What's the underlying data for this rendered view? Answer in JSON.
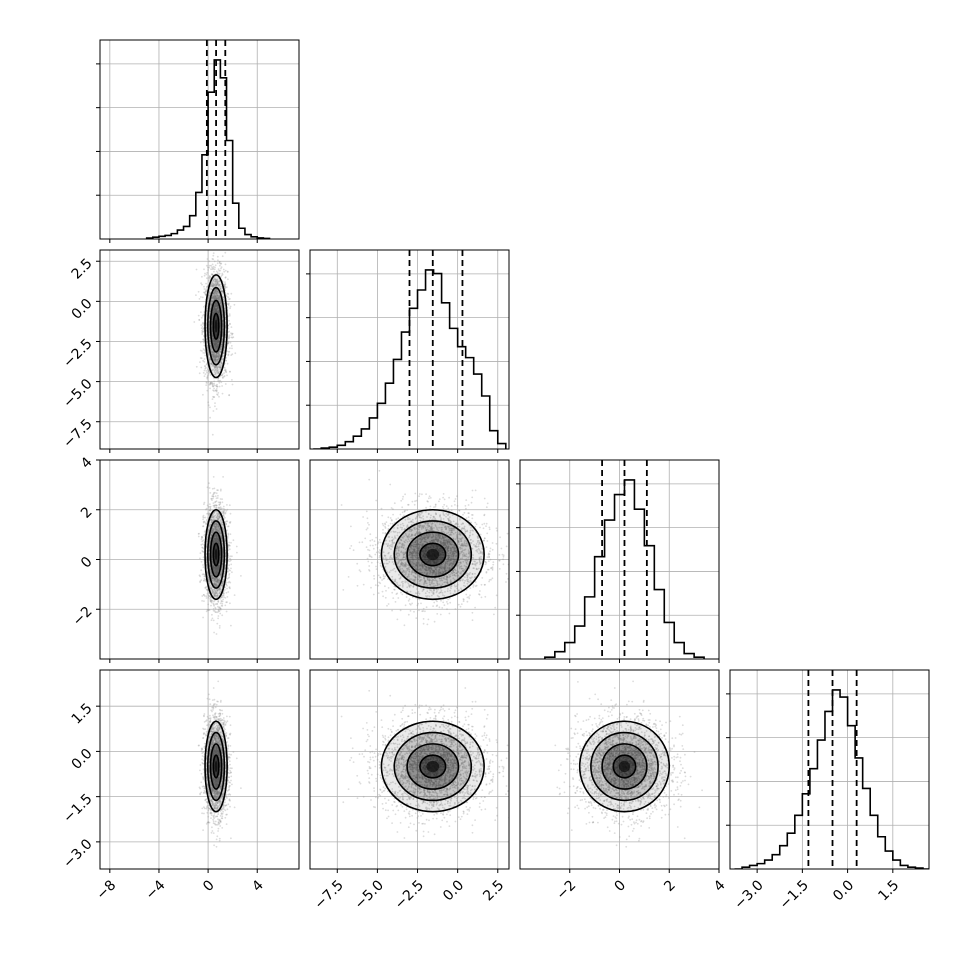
{
  "chart_data": {
    "type": "corner",
    "title": "",
    "n_params": 4,
    "parameters": [
      {
        "label": "",
        "lim": [
          -8.8,
          7.4
        ],
        "ticks": [
          -8,
          -4,
          0,
          4
        ],
        "tick_labels": [
          "−8",
          "−4",
          "0",
          "4"
        ],
        "quantiles": [
          -0.1,
          0.65,
          1.4
        ],
        "mean": 0.65,
        "std": 0.45
      },
      {
        "label": "",
        "lim": [
          -9.2,
          3.2
        ],
        "ticks": [
          -7.5,
          -5.0,
          -2.5,
          0.0,
          2.5
        ],
        "tick_labels": [
          "−7.5",
          "−5.0",
          "−2.5",
          "0.0",
          "2.5"
        ],
        "quantiles": [
          -3.0,
          -1.55,
          0.3
        ],
        "mean": -1.55,
        "std": 1.6
      },
      {
        "label": "",
        "lim": [
          -4,
          4
        ],
        "ticks": [
          -2,
          0,
          2,
          4
        ],
        "tick_labels": [
          "−2",
          "0",
          "2",
          "4"
        ],
        "quantiles": [
          -0.7,
          0.2,
          1.1
        ],
        "mean": 0.2,
        "std": 0.9
      },
      {
        "label": "",
        "lim": [
          -3.9,
          2.7
        ],
        "ticks": [
          -3.0,
          -1.5,
          0.0,
          1.5
        ],
        "tick_labels": [
          "−3.0",
          "−1.5",
          "0.0",
          "1.5"
        ],
        "quantiles": [
          -1.3,
          -0.5,
          0.3
        ],
        "mean": -0.5,
        "std": 0.75
      }
    ],
    "histograms": [
      {
        "param": 0,
        "bins": [
          -5.0,
          -4.5,
          -4.0,
          -3.5,
          -3.0,
          -2.5,
          -2.0,
          -1.5,
          -1.0,
          -0.5,
          0.0,
          0.5,
          1.0,
          1.5,
          2.0,
          2.5,
          3.0,
          3.5,
          4.0,
          4.5
        ],
        "counts": [
          0.005,
          0.01,
          0.015,
          0.02,
          0.03,
          0.05,
          0.07,
          0.13,
          0.26,
          0.47,
          0.82,
          1.0,
          0.9,
          0.55,
          0.2,
          0.06,
          0.025,
          0.012,
          0.006,
          0.003
        ]
      },
      {
        "param": 1,
        "bins": [
          -9.0,
          -8.5,
          -8.0,
          -7.5,
          -7.0,
          -6.5,
          -6.0,
          -5.5,
          -5.0,
          -4.5,
          -4.0,
          -3.5,
          -3.0,
          -2.5,
          -2.0,
          -1.5,
          -1.0,
          -0.5,
          0.0,
          0.5,
          1.0,
          1.5,
          2.0,
          2.5
        ],
        "counts": [
          0.0,
          0.005,
          0.01,
          0.02,
          0.04,
          0.07,
          0.11,
          0.17,
          0.25,
          0.36,
          0.49,
          0.64,
          0.77,
          0.87,
          0.98,
          0.96,
          0.8,
          0.66,
          0.56,
          0.5,
          0.41,
          0.29,
          0.1,
          0.03
        ]
      },
      {
        "param": 2,
        "bins": [
          -3.0,
          -2.6,
          -2.2,
          -1.8,
          -1.4,
          -1.0,
          -0.6,
          -0.2,
          0.2,
          0.6,
          1.0,
          1.4,
          1.8,
          2.2,
          2.6,
          3.0
        ],
        "counts": [
          0.01,
          0.04,
          0.09,
          0.18,
          0.34,
          0.56,
          0.76,
          0.9,
          0.98,
          0.82,
          0.62,
          0.38,
          0.2,
          0.09,
          0.03,
          0.01
        ]
      },
      {
        "param": 3,
        "bins": [
          -3.75,
          -3.5,
          -3.25,
          -3.0,
          -2.75,
          -2.5,
          -2.25,
          -2.0,
          -1.75,
          -1.5,
          -1.25,
          -1.0,
          -0.75,
          -0.5,
          -0.25,
          0.0,
          0.25,
          0.5,
          0.75,
          1.0,
          1.25,
          1.5,
          1.75,
          2.0,
          2.25,
          2.5
        ],
        "counts": [
          0.0,
          0.01,
          0.02,
          0.03,
          0.05,
          0.08,
          0.13,
          0.2,
          0.3,
          0.42,
          0.56,
          0.72,
          0.88,
          1.0,
          0.96,
          0.8,
          0.62,
          0.45,
          0.3,
          0.18,
          0.1,
          0.05,
          0.02,
          0.01,
          0.005,
          0.0
        ]
      }
    ],
    "contours_2d": [
      {
        "x_param": 0,
        "y_param": 1,
        "center": [
          0.65,
          -1.55
        ],
        "spread": [
          0.45,
          1.6
        ],
        "n_points": 2500
      },
      {
        "x_param": 0,
        "y_param": 2,
        "center": [
          0.65,
          0.2
        ],
        "spread": [
          0.45,
          0.9
        ],
        "n_points": 2500
      },
      {
        "x_param": 1,
        "y_param": 2,
        "center": [
          -1.55,
          0.2
        ],
        "spread": [
          1.6,
          0.9
        ],
        "n_points": 2500
      },
      {
        "x_param": 0,
        "y_param": 3,
        "center": [
          0.65,
          -0.5
        ],
        "spread": [
          0.45,
          0.75
        ],
        "n_points": 2500
      },
      {
        "x_param": 1,
        "y_param": 3,
        "center": [
          -1.55,
          -0.5
        ],
        "spread": [
          1.6,
          0.75
        ],
        "n_points": 2500
      },
      {
        "x_param": 2,
        "y_param": 3,
        "center": [
          0.2,
          -0.5
        ],
        "spread": [
          0.9,
          0.75
        ],
        "n_points": 2500
      }
    ],
    "grid": true,
    "legend": "none",
    "colors": {
      "points": "#9a9a9a",
      "contour": "#000000",
      "grid": "#b0b0b0",
      "density": "#000000"
    }
  }
}
